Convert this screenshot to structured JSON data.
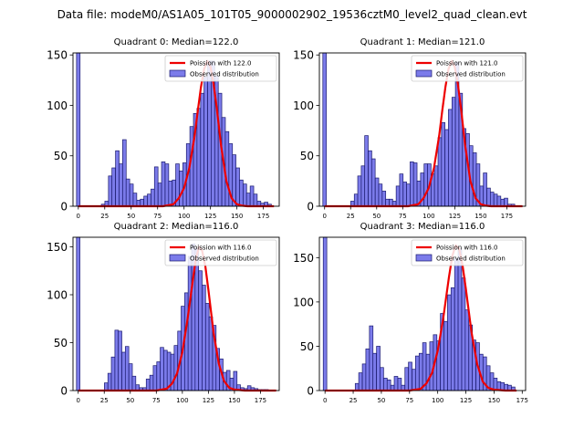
{
  "figure_title": "Data file: modeM0/AS1A05_101T05_9000002902_19536cztM0_level2_quad_clean.evt",
  "colors": {
    "bar_fill": "#7b7bea",
    "bar_edge": "#1a1a6e",
    "curve": "#ee0000",
    "axis": "#000000"
  },
  "chart_data": [
    {
      "type": "bar",
      "title": "Quadrant 0: Median=122.0",
      "xlim": [
        -5,
        190
      ],
      "ylim": [
        0,
        152
      ],
      "xticks": [
        0,
        25,
        50,
        75,
        100,
        125,
        150,
        175
      ],
      "yticks": [
        0,
        50,
        100,
        150
      ],
      "bin_width": 3.35,
      "legend": {
        "placement": "top-right",
        "curve_label": "Poission with 122.0",
        "hist_label": "Observed distribution"
      },
      "series": [
        {
          "name": "Observed distribution",
          "x": [
            0,
            23.5,
            26.8,
            30.2,
            33.5,
            36.9,
            40.2,
            43.6,
            46.9,
            50.3,
            53.6,
            57.0,
            60.3,
            63.7,
            67.0,
            70.4,
            73.7,
            77.1,
            80.4,
            83.8,
            87.1,
            90.5,
            93.8,
            97.2,
            100.5,
            103.9,
            107.2,
            110.6,
            113.9,
            117.3,
            120.6,
            124.0,
            127.3,
            130.7,
            134.0,
            137.4,
            140.7,
            144.1,
            147.4,
            150.8,
            154.1,
            157.5,
            160.8,
            164.2,
            167.5,
            170.9,
            174.2,
            177.6,
            180.9
          ],
          "values": [
            152,
            2,
            5,
            30,
            38,
            55,
            42,
            66,
            27,
            22,
            13,
            6,
            7,
            10,
            12,
            17,
            39,
            23,
            44,
            42,
            25,
            26,
            42,
            35,
            43,
            62,
            79,
            92,
            97,
            112,
            128,
            144,
            144,
            129,
            112,
            88,
            74,
            62,
            51,
            38,
            26,
            22,
            13,
            20,
            12,
            5,
            3,
            4,
            2
          ]
        },
        {
          "name": "Poission with 122.0",
          "mean": 122.0,
          "x": [
            0,
            80,
            90,
            95,
            100,
            105,
            110,
            113,
            116,
            119,
            122,
            125,
            128,
            131,
            135,
            140,
            145,
            150,
            155,
            160,
            170,
            185
          ],
          "values": [
            0,
            0,
            2,
            8,
            18,
            38,
            70,
            95,
            118,
            136,
            144,
            138,
            121,
            97,
            60,
            25,
            8,
            2,
            0.5,
            0,
            0,
            0
          ]
        }
      ]
    },
    {
      "type": "bar",
      "title": "Quadrant 1: Median=121.0",
      "xlim": [
        -5,
        193
      ],
      "ylim": [
        0,
        152
      ],
      "xticks": [
        0,
        25,
        50,
        75,
        100,
        125,
        150,
        175
      ],
      "yticks": [
        0,
        50,
        100,
        150
      ],
      "bin_width": 3.35,
      "legend": {
        "placement": "top-right",
        "curve_label": "Poission with 121.0",
        "hist_label": "Observed distribution"
      },
      "series": [
        {
          "name": "Observed distribution",
          "x": [
            0,
            26.8,
            30.2,
            33.5,
            36.9,
            40.2,
            43.6,
            46.9,
            50.3,
            53.6,
            57.0,
            60.3,
            63.7,
            67.0,
            70.4,
            73.7,
            77.1,
            80.4,
            83.8,
            87.1,
            90.5,
            93.8,
            97.2,
            100.5,
            103.9,
            107.2,
            110.6,
            113.9,
            117.3,
            120.6,
            124.0,
            127.3,
            130.7,
            134.0,
            137.4,
            140.7,
            144.1,
            147.4,
            150.8,
            154.1,
            157.5,
            160.8,
            164.2,
            167.5,
            170.9,
            174.2,
            177.6,
            180.9
          ],
          "values": [
            152,
            5,
            12,
            30,
            40,
            70,
            55,
            47,
            28,
            22,
            15,
            7,
            7,
            5,
            20,
            32,
            24,
            22,
            44,
            43,
            25,
            33,
            42,
            42,
            32,
            40,
            68,
            83,
            76,
            96,
            108,
            143,
            112,
            77,
            72,
            60,
            53,
            42,
            20,
            33,
            18,
            14,
            12,
            10,
            7,
            8,
            2,
            2
          ]
        },
        {
          "name": "Poission with 121.0",
          "mean": 121.0,
          "x": [
            0,
            80,
            90,
            95,
            100,
            105,
            110,
            113,
            116,
            119,
            122,
            125,
            128,
            131,
            135,
            140,
            145,
            150,
            155,
            160,
            175,
            190
          ],
          "values": [
            0,
            0,
            2,
            8,
            18,
            38,
            70,
            95,
            118,
            136,
            144,
            138,
            121,
            97,
            60,
            25,
            8,
            2,
            0.5,
            0,
            0,
            0
          ]
        }
      ]
    },
    {
      "type": "bar",
      "title": "Quadrant 2: Median=116.0",
      "xlim": [
        -5,
        193
      ],
      "ylim": [
        0,
        160
      ],
      "xticks": [
        0,
        25,
        50,
        75,
        100,
        125,
        150,
        175
      ],
      "yticks": [
        0,
        50,
        100,
        150
      ],
      "bin_width": 3.35,
      "legend": {
        "placement": "top-right",
        "curve_label": "Poission with 116.0",
        "hist_label": "Observed distribution"
      },
      "series": [
        {
          "name": "Observed distribution",
          "x": [
            0,
            26.8,
            30.2,
            33.5,
            36.9,
            40.2,
            43.6,
            46.9,
            50.3,
            53.6,
            57.0,
            60.3,
            63.7,
            67.0,
            70.4,
            73.7,
            77.1,
            80.4,
            83.8,
            87.1,
            90.5,
            93.8,
            97.2,
            100.5,
            103.9,
            107.2,
            110.6,
            113.9,
            117.3,
            120.6,
            124.0,
            127.3,
            130.7,
            134.0,
            137.4,
            140.7,
            144.1,
            147.4,
            150.8,
            154.1,
            157.5,
            160.8,
            164.2,
            167.5,
            170.9,
            174.2,
            177.6,
            180.9
          ],
          "values": [
            160,
            8,
            18,
            35,
            63,
            62,
            40,
            46,
            28,
            15,
            6,
            3,
            3,
            12,
            16,
            26,
            30,
            45,
            42,
            40,
            38,
            47,
            62,
            88,
            102,
            140,
            153,
            148,
            125,
            110,
            91,
            77,
            68,
            44,
            33,
            19,
            21,
            13,
            20,
            6,
            3,
            2,
            5,
            3,
            2,
            1,
            1,
            1
          ]
        },
        {
          "name": "Poission with 116.0",
          "mean": 116.0,
          "x": [
            0,
            75,
            85,
            90,
            95,
            100,
            105,
            110,
            113,
            116,
            119,
            122,
            125,
            130,
            135,
            140,
            145,
            150,
            160,
            175,
            190
          ],
          "values": [
            0,
            0,
            2,
            7,
            18,
            40,
            75,
            115,
            138,
            150,
            146,
            130,
            105,
            60,
            28,
            10,
            3,
            1,
            0,
            0,
            0
          ]
        }
      ]
    },
    {
      "type": "bar",
      "title": "Quadrant 3: Median=116.0",
      "xlim": [
        -5,
        178
      ],
      "ylim": [
        0,
        173
      ],
      "xticks": [
        0,
        25,
        50,
        75,
        100,
        125,
        150,
        175
      ],
      "yticks": [
        0,
        50,
        100,
        150
      ],
      "bin_width": 3.15,
      "legend": {
        "placement": "top-right",
        "curve_label": "Poission with 116.0",
        "hist_label": "Observed distribution"
      },
      "series": [
        {
          "name": "Observed distribution",
          "x": [
            0,
            28.4,
            31.5,
            34.7,
            37.8,
            41.0,
            44.1,
            47.3,
            50.4,
            53.6,
            56.7,
            59.9,
            63.0,
            66.2,
            69.3,
            72.5,
            75.6,
            78.8,
            81.9,
            85.1,
            88.2,
            91.4,
            94.5,
            97.7,
            100.8,
            104.0,
            107.1,
            110.3,
            113.4,
            116.6,
            119.7,
            122.9,
            126.0,
            129.2,
            132.3,
            135.5,
            138.6,
            141.8,
            144.9,
            148.1,
            151.2,
            154.4,
            157.5,
            160.7,
            163.8,
            167.0
          ],
          "values": [
            173,
            8,
            20,
            30,
            47,
            73,
            42,
            50,
            26,
            14,
            12,
            6,
            16,
            14,
            6,
            26,
            32,
            24,
            39,
            42,
            54,
            41,
            55,
            63,
            56,
            87,
            78,
            108,
            116,
            149,
            160,
            127,
            91,
            74,
            57,
            54,
            41,
            38,
            28,
            20,
            14,
            10,
            9,
            7,
            6,
            4
          ]
        },
        {
          "name": "Poission with 116.0",
          "mean": 116.0,
          "x": [
            0,
            75,
            85,
            90,
            95,
            100,
            105,
            110,
            113,
            116,
            119,
            122,
            125,
            130,
            135,
            140,
            145,
            150,
            160,
            170
          ],
          "values": [
            0,
            0,
            2,
            8,
            20,
            45,
            82,
            128,
            152,
            164,
            160,
            142,
            115,
            66,
            30,
            10,
            3,
            1,
            0,
            0
          ]
        }
      ]
    }
  ]
}
